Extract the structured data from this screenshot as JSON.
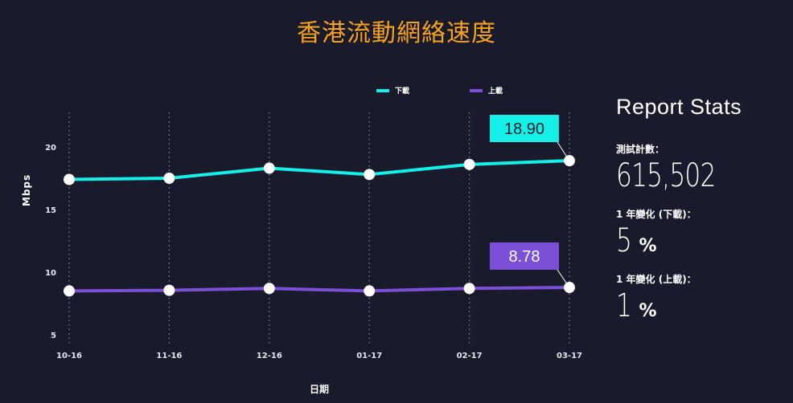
{
  "title": "香港流動網絡速度",
  "chart_data": {
    "type": "line",
    "categories": [
      "10-16",
      "11-16",
      "12-16",
      "01-17",
      "02-17",
      "03-17"
    ],
    "series": [
      {
        "name": "下載",
        "color": "#14f0e8",
        "values": [
          17.4,
          17.5,
          18.3,
          17.8,
          18.6,
          18.9
        ]
      },
      {
        "name": "上載",
        "color": "#7b4fd6",
        "values": [
          8.5,
          8.55,
          8.7,
          8.5,
          8.7,
          8.78
        ]
      }
    ],
    "callouts": [
      "18.90",
      "8.78"
    ],
    "xlabel": "日期",
    "ylabel": "Mbps",
    "yticks": [
      5,
      10,
      15,
      20
    ],
    "ylim": [
      4,
      23
    ],
    "grid": "vertical-dotted",
    "legend": "top-center"
  },
  "stats": {
    "heading": "Report Stats",
    "items": [
      {
        "label": "測試計數：",
        "value": "615,502",
        "unit": ""
      },
      {
        "label": "1 年變化 (下載)：",
        "value": "5",
        "unit": "%"
      },
      {
        "label": "1 年變化 (上載)：",
        "value": "1",
        "unit": "%"
      }
    ]
  }
}
